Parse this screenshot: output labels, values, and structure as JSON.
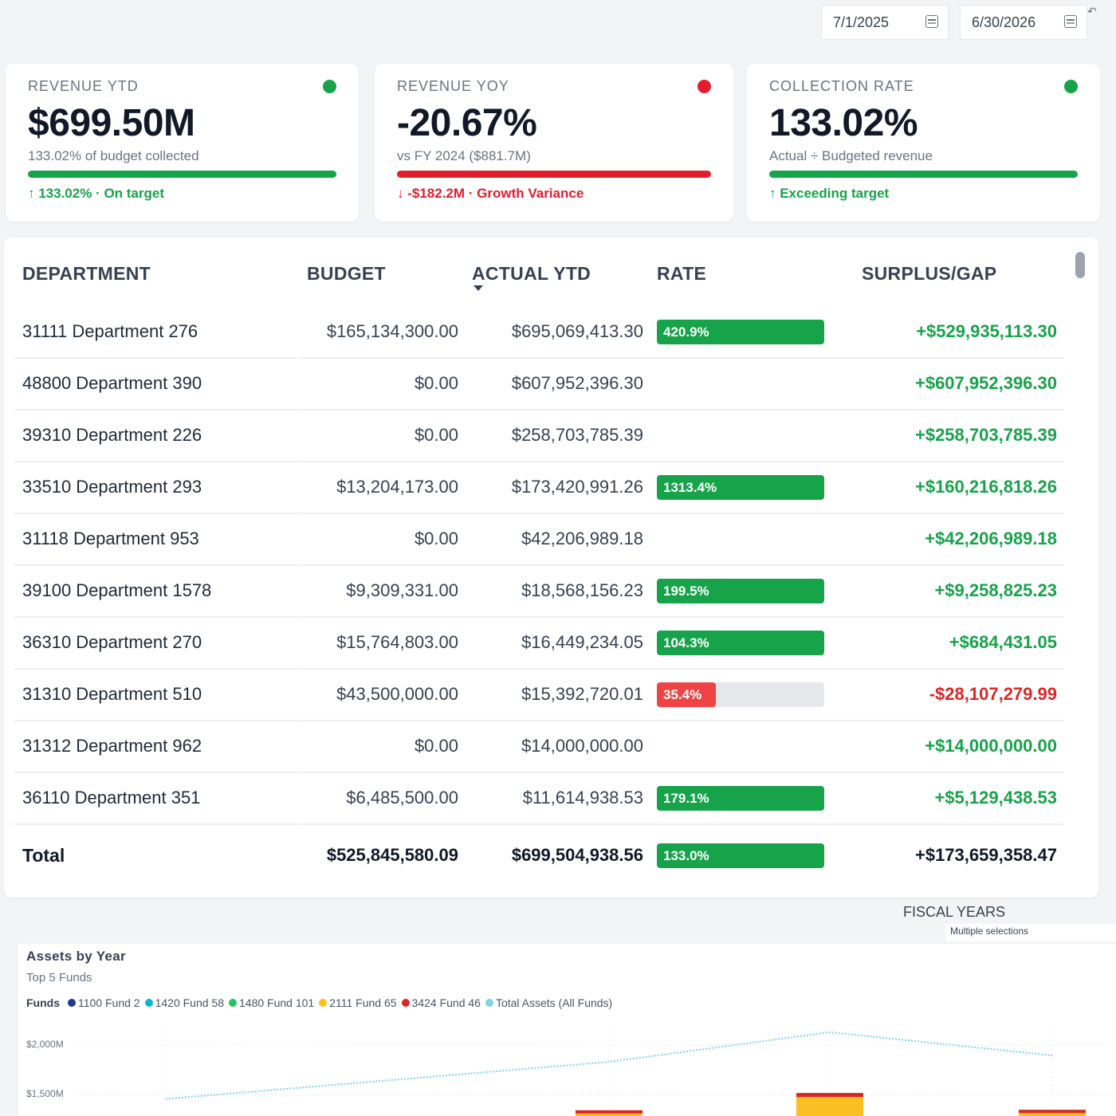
{
  "date_range": {
    "start": "7/1/2025",
    "end": "6/30/2026"
  },
  "kpis": [
    {
      "label": "REVENUE YTD",
      "value": "$699.50M",
      "sub": "133.02% of budget collected",
      "trend": "↑ 133.02% · On target",
      "status_color": "#16a34a",
      "bar_color": "#16a34a",
      "trend_color": "#16a34a"
    },
    {
      "label": "REVENUE YOY",
      "value": "-20.67%",
      "sub": "vs FY 2024 ($881.7M)",
      "trend": "↓ -$182.2M · Growth Variance",
      "status_color": "#e11d2e",
      "bar_color": "#e11d2e",
      "trend_color": "#e11d2e"
    },
    {
      "label": "COLLECTION RATE",
      "value": "133.02%",
      "sub": "Actual ÷ Budgeted revenue",
      "trend": "↑ Exceeding target",
      "status_color": "#16a34a",
      "bar_color": "#16a34a",
      "trend_color": "#16a34a"
    }
  ],
  "table": {
    "headers": {
      "department": "DEPARTMENT",
      "budget": "BUDGET",
      "actual": "ACTUAL YTD",
      "rate": "RATE",
      "surplus": "SURPLUS/GAP"
    },
    "sorted_column": "actual",
    "sort_direction": "descending",
    "rows": [
      {
        "department": "31111 Department 276",
        "budget": "$165,134,300.00",
        "actual": "$695,069,413.30",
        "rate": "420.9%",
        "rate_fill": 1.0,
        "surplus": "+$529,935,113.30",
        "status": "pos"
      },
      {
        "department": "48800 Department 390",
        "budget": "$0.00",
        "actual": "$607,952,396.30",
        "rate": "",
        "rate_fill": 0,
        "surplus": "+$607,952,396.30",
        "status": "pos"
      },
      {
        "department": "39310 Department 226",
        "budget": "$0.00",
        "actual": "$258,703,785.39",
        "rate": "",
        "rate_fill": 0,
        "surplus": "+$258,703,785.39",
        "status": "pos"
      },
      {
        "department": "33510 Department 293",
        "budget": "$13,204,173.00",
        "actual": "$173,420,991.26",
        "rate": "1313.4%",
        "rate_fill": 1.0,
        "surplus": "+$160,216,818.26",
        "status": "pos"
      },
      {
        "department": "31118 Department 953",
        "budget": "$0.00",
        "actual": "$42,206,989.18",
        "rate": "",
        "rate_fill": 0,
        "surplus": "+$42,206,989.18",
        "status": "pos"
      },
      {
        "department": "39100 Department 1578",
        "budget": "$9,309,331.00",
        "actual": "$18,568,156.23",
        "rate": "199.5%",
        "rate_fill": 1.0,
        "surplus": "+$9,258,825.23",
        "status": "pos"
      },
      {
        "department": "36310 Department 270",
        "budget": "$15,764,803.00",
        "actual": "$16,449,234.05",
        "rate": "104.3%",
        "rate_fill": 1.0,
        "surplus": "+$684,431.05",
        "status": "pos"
      },
      {
        "department": "31310 Department 510",
        "budget": "$43,500,000.00",
        "actual": "$15,392,720.01",
        "rate": "35.4%",
        "rate_fill": 0.354,
        "surplus": "-$28,107,279.99",
        "status": "neg"
      },
      {
        "department": "31312 Department 962",
        "budget": "$0.00",
        "actual": "$14,000,000.00",
        "rate": "",
        "rate_fill": 0,
        "surplus": "+$14,000,000.00",
        "status": "pos"
      },
      {
        "department": "36110 Department 351",
        "budget": "$6,485,500.00",
        "actual": "$11,614,938.53",
        "rate": "179.1%",
        "rate_fill": 1.0,
        "surplus": "+$5,129,438.53",
        "status": "pos"
      }
    ],
    "total": {
      "department": "Total",
      "budget": "$525,845,580.09",
      "actual": "$699,504,938.56",
      "rate": "133.0%",
      "rate_fill": 1.0,
      "surplus": "+$173,659,358.47"
    }
  },
  "fiscal_years": {
    "label": "FISCAL YEARS",
    "value": "Multiple selections"
  },
  "chart_data": {
    "type": "bar",
    "title": "Assets by Year",
    "subtitle": "Top 5 Funds",
    "legend_title": "Funds",
    "legend_placement": "top-left",
    "series": [
      {
        "name": "1100 Fund 2",
        "color": "#1e3a8a"
      },
      {
        "name": "1420 Fund 58",
        "color": "#06b6d4"
      },
      {
        "name": "1480 Fund 101",
        "color": "#22c55e"
      },
      {
        "name": "2111 Fund 65",
        "color": "#fbbf24"
      },
      {
        "name": "3424 Fund 46",
        "color": "#dc2626"
      },
      {
        "name": "Total Assets (All Funds)",
        "color": "#7dd3e8",
        "type": "line",
        "values": [
          1455,
          1830,
          2130,
          1895
        ]
      }
    ],
    "stacked_bar_tops": [
      null,
      1340,
      1515,
      1345
    ],
    "y_ticks": [
      "$2,000M",
      "$1,500M"
    ],
    "y_tick_values": [
      2000,
      1500
    ],
    "grid": true
  }
}
